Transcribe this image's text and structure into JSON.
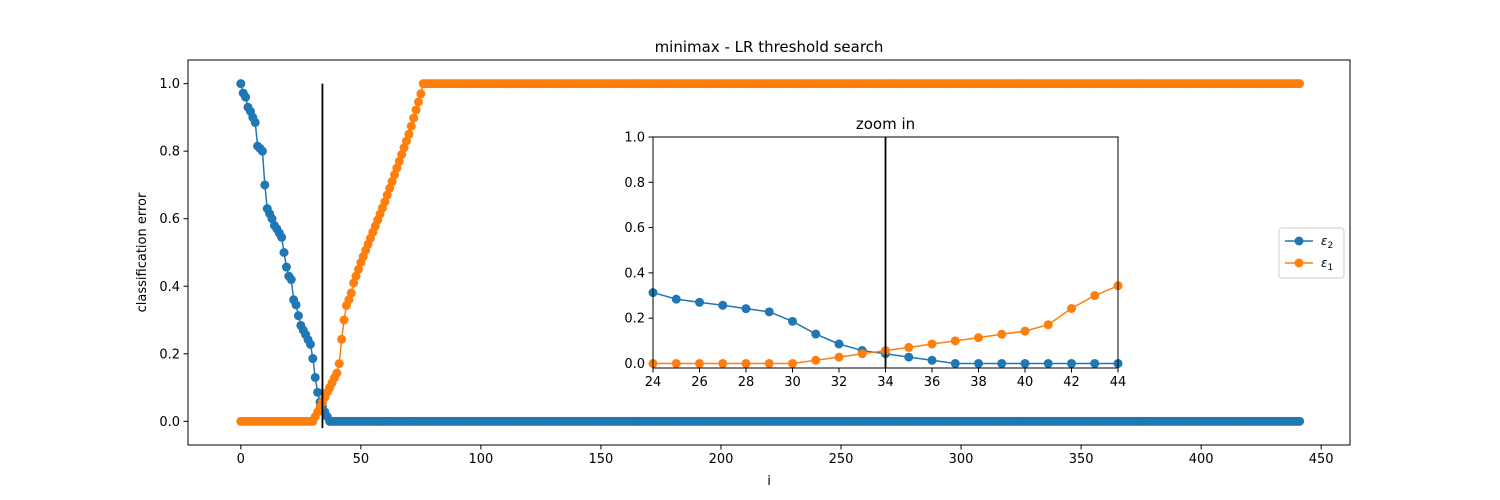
{
  "chart_data": [
    {
      "type": "line",
      "title": "minimax - LR threshold search",
      "xlabel": "i",
      "ylabel": "classification error",
      "xlim": [
        -22,
        462
      ],
      "ylim": [
        -0.07,
        1.07
      ],
      "xticks": [
        0,
        50,
        100,
        150,
        200,
        250,
        300,
        350,
        400,
        450
      ],
      "yticks": [
        0.0,
        0.2,
        0.4,
        0.6,
        0.8,
        1.0
      ],
      "x_range": [
        0,
        441
      ],
      "threshold_line": {
        "x": 34,
        "y": [
          -0.02,
          1.0
        ],
        "color": "#000000"
      },
      "legend": {
        "placement": "right"
      },
      "series": [
        {
          "name": "ε2",
          "color": "#1f77b4",
          "knots": [
            [
              0,
              1.0
            ],
            [
              1,
              0.972
            ],
            [
              2,
              0.96
            ],
            [
              3,
              0.93
            ],
            [
              4,
              0.918
            ],
            [
              5,
              0.9
            ],
            [
              6,
              0.885
            ],
            [
              7,
              0.815
            ],
            [
              8,
              0.808
            ],
            [
              9,
              0.8
            ],
            [
              10,
              0.7
            ],
            [
              11,
              0.63
            ],
            [
              12,
              0.615
            ],
            [
              13,
              0.6
            ],
            [
              14,
              0.58
            ],
            [
              15,
              0.57
            ],
            [
              16,
              0.558
            ],
            [
              17,
              0.545
            ],
            [
              18,
              0.5
            ],
            [
              19,
              0.457
            ],
            [
              20,
              0.43
            ],
            [
              21,
              0.42
            ],
            [
              22,
              0.36
            ],
            [
              23,
              0.345
            ],
            [
              24,
              0.313
            ],
            [
              25,
              0.284
            ],
            [
              26,
              0.27
            ],
            [
              27,
              0.257
            ],
            [
              28,
              0.242
            ],
            [
              29,
              0.228
            ],
            [
              30,
              0.186
            ],
            [
              31,
              0.13
            ],
            [
              32,
              0.086
            ],
            [
              33,
              0.057
            ],
            [
              34,
              0.043
            ],
            [
              35,
              0.028
            ],
            [
              36,
              0.014
            ],
            [
              37,
              0.0
            ],
            [
              441,
              0.0
            ]
          ]
        },
        {
          "name": "ε1",
          "color": "#ff7f0e",
          "knots": [
            [
              0,
              0.0
            ],
            [
              30,
              0.0
            ],
            [
              31,
              0.014
            ],
            [
              32,
              0.028
            ],
            [
              33,
              0.043
            ],
            [
              34,
              0.057
            ],
            [
              35,
              0.071
            ],
            [
              36,
              0.086
            ],
            [
              37,
              0.1
            ],
            [
              38,
              0.114
            ],
            [
              39,
              0.129
            ],
            [
              40,
              0.143
            ],
            [
              41,
              0.171
            ],
            [
              42,
              0.243
            ],
            [
              43,
              0.3
            ],
            [
              44,
              0.343
            ],
            [
              45,
              0.36
            ],
            [
              46,
              0.38
            ],
            [
              47,
              0.41
            ],
            [
              48,
              0.43
            ],
            [
              49,
              0.45
            ],
            [
              50,
              0.47
            ],
            [
              55,
              0.56
            ],
            [
              60,
              0.65
            ],
            [
              65,
              0.75
            ],
            [
              70,
              0.85
            ],
            [
              75,
              0.97
            ],
            [
              76,
              1.0
            ],
            [
              441,
              1.0
            ]
          ]
        }
      ]
    },
    {
      "type": "line",
      "title": "zoom in",
      "xlabel": "",
      "ylabel": "",
      "xlim": [
        24,
        44
      ],
      "ylim": [
        -0.02,
        1.0
      ],
      "xticks": [
        24,
        26,
        28,
        30,
        32,
        34,
        36,
        38,
        40,
        42,
        44
      ],
      "yticks": [
        0.0,
        0.2,
        0.4,
        0.6,
        0.8,
        1.0
      ],
      "threshold_line": {
        "x": 34,
        "color": "#000000"
      },
      "series": [
        {
          "name": "ε2",
          "color": "#1f77b4",
          "x": [
            24,
            25,
            26,
            27,
            28,
            29,
            30,
            31,
            32,
            33,
            34,
            35,
            36,
            37,
            38,
            39,
            40,
            41,
            42,
            43,
            44
          ],
          "y": [
            0.313,
            0.284,
            0.27,
            0.257,
            0.242,
            0.228,
            0.186,
            0.13,
            0.086,
            0.057,
            0.043,
            0.028,
            0.014,
            0.0,
            0.0,
            0.0,
            0.0,
            0.0,
            0.0,
            0.0,
            0.0
          ]
        },
        {
          "name": "ε1",
          "color": "#ff7f0e",
          "x": [
            24,
            25,
            26,
            27,
            28,
            29,
            30,
            31,
            32,
            33,
            34,
            35,
            36,
            37,
            38,
            39,
            40,
            41,
            42,
            43,
            44
          ],
          "y": [
            0.0,
            0.0,
            0.0,
            0.0,
            0.0,
            0.0,
            0.0,
            0.014,
            0.028,
            0.043,
            0.057,
            0.071,
            0.086,
            0.1,
            0.114,
            0.129,
            0.143,
            0.171,
            0.243,
            0.3,
            0.343
          ]
        }
      ]
    }
  ],
  "legend_entries": [
    {
      "symbol": "ε",
      "sub": "2",
      "color": "#1f77b4"
    },
    {
      "symbol": "ε",
      "sub": "1",
      "color": "#ff7f0e"
    }
  ]
}
